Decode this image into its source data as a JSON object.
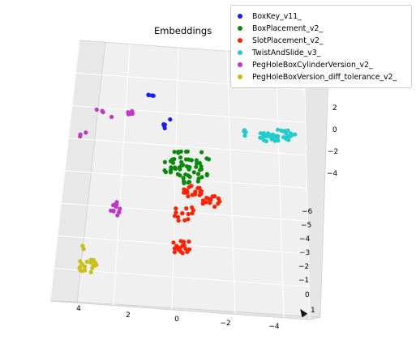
{
  "chart_data": {
    "type": "scatter",
    "projection": "3d",
    "title": "Embeddings",
    "legend_position": "top-right",
    "grid": true,
    "axes": {
      "x": {
        "ticks": [
          "4",
          "2",
          "0",
          "−2",
          "−4"
        ]
      },
      "y": {
        "ticks": [
          "−6",
          "−5",
          "−4",
          "−3",
          "−2",
          "−1",
          "0",
          "1"
        ]
      },
      "z": {
        "ticks": [
          "2",
          "0",
          "−2",
          "−4"
        ]
      }
    },
    "series": [
      {
        "name": "BoxKey_v11_",
        "color": "#1a1aff"
      },
      {
        "name": "BoxPlacement_v2_",
        "color": "#0a8a0a"
      },
      {
        "name": "SlotPlacement_v2_",
        "color": "#ff2200"
      },
      {
        "name": "TwistAndSlide_v3_",
        "color": "#22cccc"
      },
      {
        "name": "PegHoleBoxCylinderVersion_v2_",
        "color": "#c036c8"
      },
      {
        "name": "PegHoleBoxVersion_diff_tolerance_v2_",
        "color": "#c8c018"
      }
    ]
  }
}
